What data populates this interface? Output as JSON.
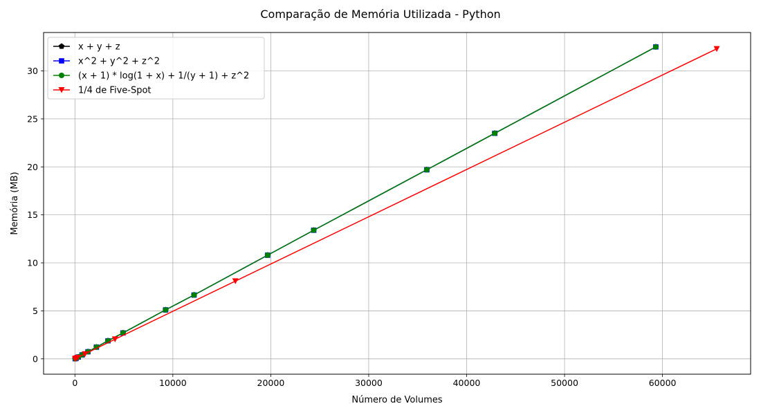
{
  "chart_data": {
    "type": "line",
    "title": "Comparação de Memória Utilizada - Python",
    "xlabel": "Número de Volumes",
    "ylabel": "Memória (MB)",
    "xlim": [
      -3200,
      69000
    ],
    "ylim": [
      -1.6,
      34.0
    ],
    "xticks": [
      0,
      10000,
      20000,
      30000,
      40000,
      50000,
      60000
    ],
    "xtick_labels": [
      "0",
      "10000",
      "20000",
      "30000",
      "40000",
      "50000",
      "60000"
    ],
    "yticks": [
      0,
      5,
      10,
      15,
      20,
      25,
      30
    ],
    "ytick_labels": [
      "0",
      "5",
      "10",
      "15",
      "20",
      "25",
      "30"
    ],
    "grid": true,
    "legend_position": "top-left",
    "series": [
      {
        "name": "x + y + z",
        "color": "#000000",
        "marker": "pentagon",
        "x": [
          27,
          125,
          343,
          729,
          1331,
          2197,
          3375,
          4913,
          9261,
          12167,
          19683,
          24389,
          35937,
          42875,
          59319
        ],
        "y": [
          0.015,
          0.07,
          0.19,
          0.41,
          0.74,
          1.22,
          1.88,
          2.7,
          5.1,
          6.65,
          10.8,
          13.4,
          19.7,
          23.5,
          32.5
        ]
      },
      {
        "name": "x^2 + y^2 + z^2",
        "color": "#0000ff",
        "marker": "square",
        "x": [
          27,
          125,
          343,
          729,
          1331,
          2197,
          3375,
          4913,
          9261,
          12167,
          19683,
          24389,
          35937,
          42875,
          59319
        ],
        "y": [
          0.015,
          0.07,
          0.19,
          0.41,
          0.74,
          1.22,
          1.88,
          2.7,
          5.1,
          6.65,
          10.8,
          13.4,
          19.7,
          23.5,
          32.5
        ]
      },
      {
        "name": "(x + 1) * log(1 + x) + 1/(y + 1) + z^2",
        "color": "#008000",
        "marker": "circle",
        "x": [
          27,
          125,
          343,
          729,
          1331,
          2197,
          3375,
          4913,
          9261,
          12167,
          19683,
          24389,
          35937,
          42875,
          59319
        ],
        "y": [
          0.015,
          0.07,
          0.19,
          0.41,
          0.74,
          1.22,
          1.88,
          2.7,
          5.1,
          6.65,
          10.8,
          13.4,
          19.7,
          23.5,
          32.5
        ]
      },
      {
        "name": "1/4 de Five-Spot",
        "color": "#ff0000",
        "marker": "triangle-down",
        "x": [
          16,
          64,
          256,
          1024,
          4096,
          16384,
          65536
        ],
        "y": [
          0.01,
          0.03,
          0.13,
          0.51,
          2.05,
          8.1,
          32.3
        ]
      }
    ]
  }
}
